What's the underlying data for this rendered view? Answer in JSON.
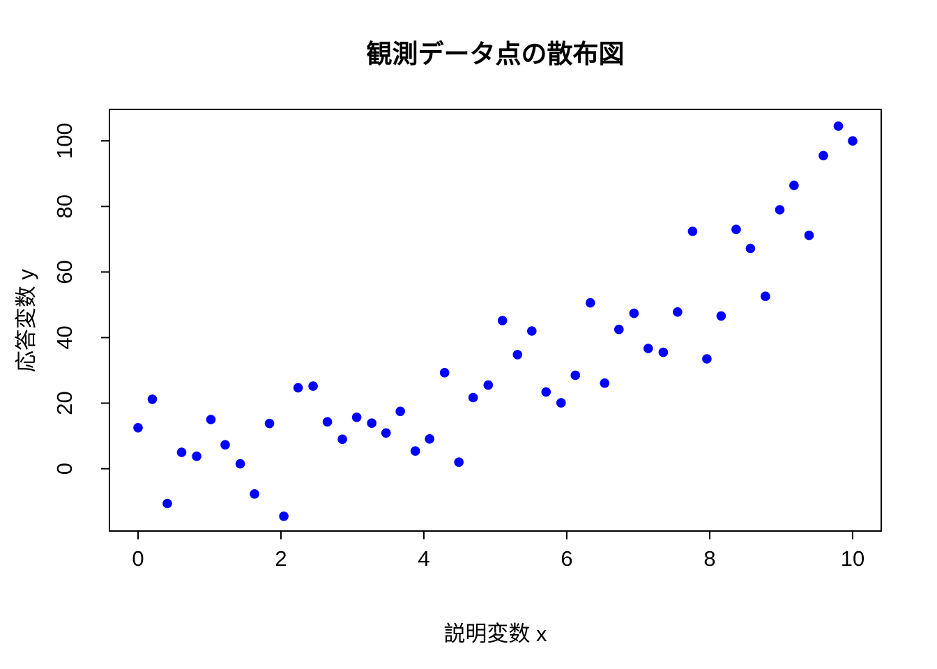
{
  "title": "観測データ点の散布図",
  "chart_data": {
    "type": "scatter",
    "title": "観測データ点の散布図",
    "xlabel": "説明変数 x",
    "ylabel": "応答変数 y",
    "x_tick_labels": [
      "0",
      "2",
      "4",
      "6",
      "8",
      "10"
    ],
    "y_tick_labels": [
      "0",
      "20",
      "40",
      "60",
      "80",
      "100"
    ],
    "x_ticks": [
      0,
      2,
      4,
      6,
      8,
      10
    ],
    "y_ticks": [
      0,
      20,
      40,
      60,
      80,
      100
    ],
    "xlim": [
      -0.4,
      10.4
    ],
    "ylim": [
      -19,
      109.6
    ],
    "grid": false,
    "legend": null,
    "point_color": "#0000ff",
    "axis_color": "#000000",
    "background_color": "#ffffff",
    "marker": "filled-circle",
    "x": [
      0.0,
      0.2,
      0.41,
      0.61,
      0.82,
      1.02,
      1.22,
      1.43,
      1.63,
      1.84,
      2.04,
      2.24,
      2.45,
      2.65,
      2.86,
      3.06,
      3.27,
      3.47,
      3.67,
      3.88,
      4.08,
      4.29,
      4.49,
      4.69,
      4.9,
      5.1,
      5.31,
      5.51,
      5.71,
      5.92,
      6.12,
      6.33,
      6.53,
      6.73,
      6.94,
      7.14,
      7.35,
      7.55,
      7.76,
      7.96,
      8.16,
      8.37,
      8.57,
      8.78,
      8.98,
      9.18,
      9.39,
      9.59,
      9.8,
      10.0
    ],
    "y": [
      12.5,
      21.2,
      -10.6,
      5.0,
      3.8,
      15.0,
      7.3,
      1.5,
      -7.7,
      13.8,
      -14.5,
      24.7,
      25.2,
      14.3,
      9.0,
      15.7,
      13.9,
      10.9,
      17.5,
      5.4,
      9.1,
      29.3,
      2.0,
      21.7,
      25.5,
      45.2,
      34.8,
      42.0,
      23.4,
      20.1,
      28.5,
      50.6,
      26.1,
      42.5,
      47.4,
      36.7,
      35.5,
      47.8,
      72.4,
      33.5,
      46.6,
      73.0,
      67.2,
      52.6,
      79.0,
      86.4,
      71.2,
      95.5,
      104.5,
      100.0
    ]
  }
}
